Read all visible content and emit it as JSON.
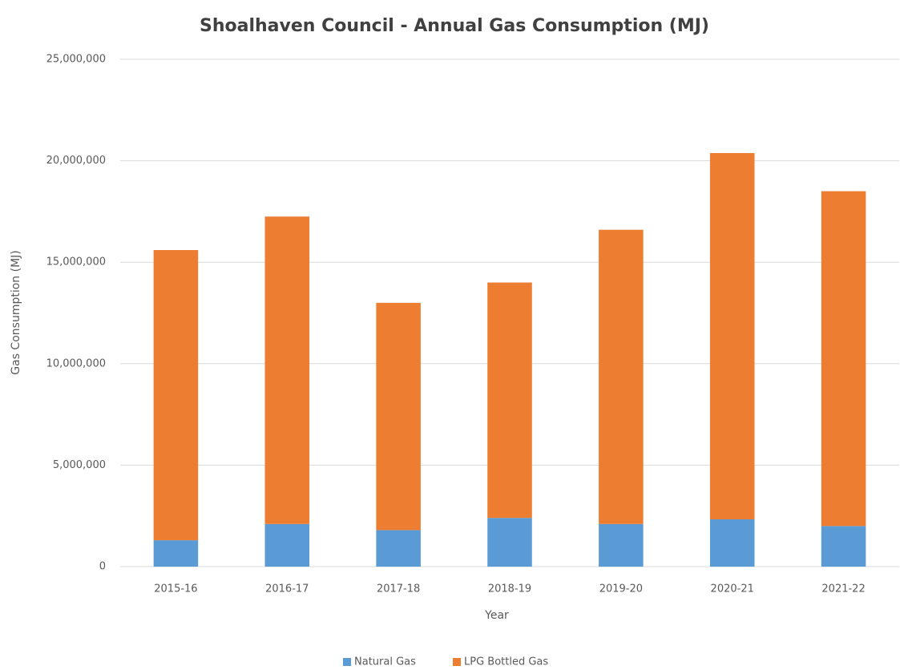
{
  "chart_data": {
    "type": "stacked_bar",
    "title": "Shoalhaven Council - Annual Gas Consumption (MJ)",
    "x_label": "Year",
    "y_label": "Gas Consumption (MJ)",
    "categories": [
      "2015-16",
      "2016-17",
      "2017-18",
      "2018-19",
      "2019-20",
      "2020-21",
      "2021-22"
    ],
    "series": [
      {
        "name": "Natural Gas",
        "color": "#5b9bd5",
        "values": [
          1300000,
          2100000,
          1800000,
          2400000,
          2100000,
          2330000,
          2000000
        ]
      },
      {
        "name": "LPG Bottled Gas",
        "color": "#ed7d31",
        "values": [
          14300000,
          15150000,
          11200000,
          11600000,
          14500000,
          18050000,
          16500000
        ]
      }
    ],
    "ylim": [
      0,
      25000000
    ],
    "yticks": [
      0,
      {
        "value": 5000000,
        "label": "5,000,000"
      },
      {
        "value": 10000000,
        "label": "10,000,000"
      },
      {
        "value": 15000000,
        "label": "15,000,000"
      },
      {
        "value": 20000000,
        "label": "20,000,000"
      },
      {
        "value": 25000000,
        "label": "25,000,000"
      }
    ],
    "grid": true,
    "legend": "bottom"
  }
}
